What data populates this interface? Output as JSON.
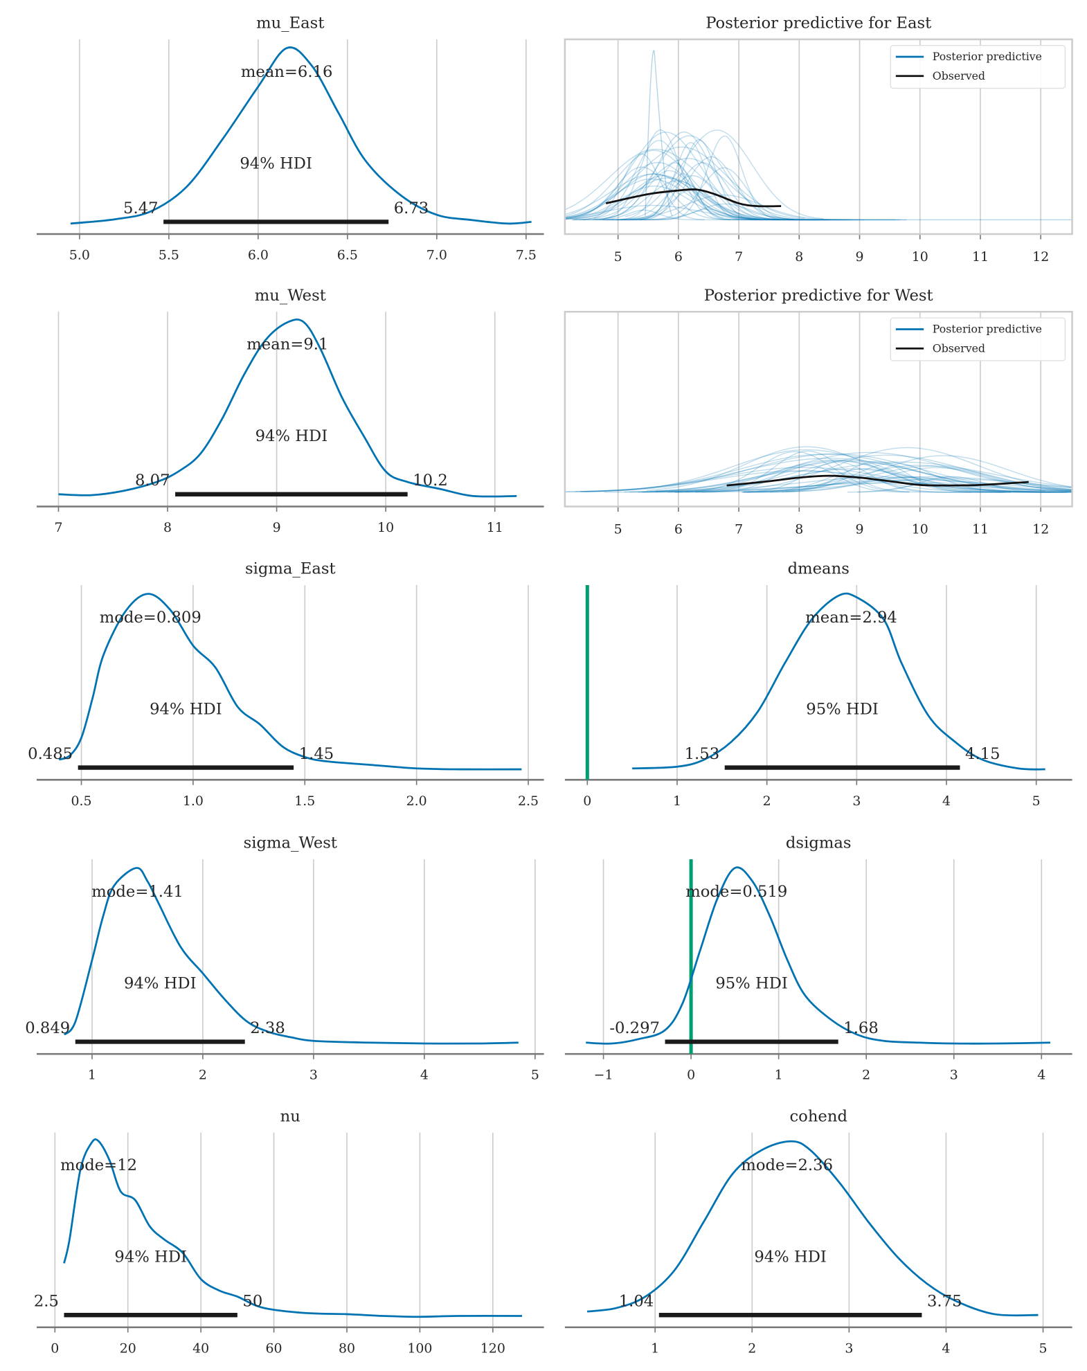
{
  "chart_data": [
    {
      "id": "mu_East",
      "type": "density",
      "title": "mu_East",
      "ticks": [
        5.0,
        5.5,
        6.0,
        6.5,
        7.0,
        7.5
      ],
      "tick_labels": [
        "5.0",
        "5.5",
        "6.0",
        "6.5",
        "7.0",
        "7.5"
      ],
      "xlim": [
        4.76,
        7.6
      ],
      "point_label": "mean=6.16",
      "point": 6.16,
      "hdi": [
        5.47,
        6.73
      ],
      "hdi_labels": [
        "5.47",
        "6.73"
      ],
      "hdi_text": "94% HDI",
      "density": [
        [
          4.95,
          0
        ],
        [
          5.2,
          0.025
        ],
        [
          5.4,
          0.07
        ],
        [
          5.6,
          0.21
        ],
        [
          5.8,
          0.48
        ],
        [
          6.0,
          0.78
        ],
        [
          6.16,
          1
        ],
        [
          6.3,
          0.9
        ],
        [
          6.45,
          0.63
        ],
        [
          6.6,
          0.36
        ],
        [
          6.8,
          0.16
        ],
        [
          7.0,
          0.05
        ],
        [
          7.2,
          0.02
        ],
        [
          7.4,
          0
        ],
        [
          7.53,
          0.01
        ]
      ]
    },
    {
      "id": "mu_West",
      "type": "density",
      "title": "mu_West",
      "ticks": [
        7,
        8,
        9,
        10,
        11
      ],
      "tick_labels": [
        "7",
        "8",
        "9",
        "10",
        "11"
      ],
      "xlim": [
        6.8,
        11.45
      ],
      "point_label": "mean=9.1",
      "point": 9.1,
      "hdi": [
        8.07,
        10.2
      ],
      "hdi_labels": [
        "8.07",
        "10.2"
      ],
      "hdi_text": "94% HDI",
      "density": [
        [
          7.0,
          0.01
        ],
        [
          7.3,
          0.005
        ],
        [
          7.6,
          0.03
        ],
        [
          7.9,
          0.08
        ],
        [
          8.1,
          0.14
        ],
        [
          8.3,
          0.24
        ],
        [
          8.5,
          0.44
        ],
        [
          8.7,
          0.69
        ],
        [
          8.9,
          0.89
        ],
        [
          9.1,
          0.99
        ],
        [
          9.25,
          0.99
        ],
        [
          9.4,
          0.84
        ],
        [
          9.6,
          0.56
        ],
        [
          9.8,
          0.34
        ],
        [
          10.0,
          0.14
        ],
        [
          10.2,
          0.08
        ],
        [
          10.5,
          0.04
        ],
        [
          10.8,
          0.0
        ],
        [
          11.2,
          0.0
        ]
      ]
    },
    {
      "id": "sigma_East",
      "type": "density",
      "title": "sigma_East",
      "ticks": [
        0.5,
        1.0,
        1.5,
        2.0,
        2.5
      ],
      "tick_labels": [
        "0.5",
        "1.0",
        "1.5",
        "2.0",
        "2.5"
      ],
      "xlim": [
        0.3,
        2.57
      ],
      "point_label": "mode=0.809",
      "point": 0.809,
      "hdi": [
        0.485,
        1.45
      ],
      "hdi_labels": [
        "0.485",
        "1.45"
      ],
      "hdi_text": "94% HDI",
      "density": [
        [
          0.4,
          0.055
        ],
        [
          0.45,
          0.08
        ],
        [
          0.5,
          0.18
        ],
        [
          0.55,
          0.405
        ],
        [
          0.6,
          0.655
        ],
        [
          0.7,
          0.905
        ],
        [
          0.8,
          1
        ],
        [
          0.9,
          0.905
        ],
        [
          1.0,
          0.705
        ],
        [
          1.1,
          0.58
        ],
        [
          1.2,
          0.355
        ],
        [
          1.3,
          0.255
        ],
        [
          1.4,
          0.13
        ],
        [
          1.5,
          0.07
        ],
        [
          1.6,
          0.045
        ],
        [
          1.8,
          0.025
        ],
        [
          2.0,
          0.005
        ],
        [
          2.2,
          0
        ],
        [
          2.47,
          0
        ]
      ]
    },
    {
      "id": "dmeans",
      "type": "density",
      "title": "dmeans",
      "ticks": [
        0,
        1,
        2,
        3,
        4,
        5
      ],
      "tick_labels": [
        "0",
        "1",
        "2",
        "3",
        "4",
        "5"
      ],
      "xlim": [
        -0.25,
        5.4
      ],
      "ref_val": 0,
      "point_label": "mean=2.94",
      "point": 2.94,
      "hdi": [
        1.53,
        4.15
      ],
      "hdi_labels": [
        "1.53",
        "4.15"
      ],
      "hdi_text": "95% HDI",
      "density": [
        [
          0.5,
          0.005
        ],
        [
          1.0,
          0.015
        ],
        [
          1.3,
          0.055
        ],
        [
          1.6,
          0.155
        ],
        [
          1.9,
          0.33
        ],
        [
          2.2,
          0.605
        ],
        [
          2.5,
          0.855
        ],
        [
          2.8,
          0.99
        ],
        [
          3.0,
          0.98
        ],
        [
          3.3,
          0.855
        ],
        [
          3.5,
          0.605
        ],
        [
          3.8,
          0.305
        ],
        [
          4.1,
          0.155
        ],
        [
          4.4,
          0.055
        ],
        [
          4.8,
          0.005
        ],
        [
          5.1,
          0
        ]
      ]
    },
    {
      "id": "sigma_West",
      "type": "density",
      "title": "sigma_West",
      "ticks": [
        1,
        2,
        3,
        4,
        5
      ],
      "tick_labels": [
        "1",
        "2",
        "3",
        "4",
        "5"
      ],
      "xlim": [
        0.5,
        5.08
      ],
      "point_label": "mode=1.41",
      "point": 1.41,
      "hdi": [
        0.849,
        2.38
      ],
      "hdi_labels": [
        "0.849",
        "2.38"
      ],
      "hdi_text": "94% HDI",
      "density": [
        [
          0.75,
          0.05
        ],
        [
          0.85,
          0.125
        ],
        [
          1.0,
          0.475
        ],
        [
          1.1,
          0.725
        ],
        [
          1.2,
          0.9
        ],
        [
          1.4,
          1
        ],
        [
          1.5,
          0.925
        ],
        [
          1.6,
          0.8
        ],
        [
          1.8,
          0.55
        ],
        [
          2.0,
          0.4
        ],
        [
          2.2,
          0.25
        ],
        [
          2.4,
          0.125
        ],
        [
          2.6,
          0.065
        ],
        [
          2.8,
          0.035
        ],
        [
          3.0,
          0.015
        ],
        [
          3.5,
          0.005
        ],
        [
          4.0,
          0
        ],
        [
          4.5,
          0
        ],
        [
          4.85,
          0.005
        ]
      ]
    },
    {
      "id": "dsigmas",
      "type": "density",
      "title": "dsigmas",
      "ticks": [
        -1,
        0,
        1,
        2,
        3,
        4
      ],
      "tick_labels": [
        "−1",
        "0",
        "1",
        "2",
        "3",
        "4"
      ],
      "xlim": [
        -1.44,
        4.35
      ],
      "ref_val": 0,
      "point_label": "mode=0.519",
      "point": 0.519,
      "hdi": [
        -0.297,
        1.68
      ],
      "hdi_labels": [
        "-0.297",
        "1.68"
      ],
      "hdi_text": "95% HDI",
      "density": [
        [
          -1.2,
          0.005
        ],
        [
          -0.9,
          0
        ],
        [
          -0.6,
          0.025
        ],
        [
          -0.3,
          0.075
        ],
        [
          -0.1,
          0.225
        ],
        [
          0.1,
          0.525
        ],
        [
          0.3,
          0.825
        ],
        [
          0.5,
          1
        ],
        [
          0.7,
          0.925
        ],
        [
          0.9,
          0.725
        ],
        [
          1.1,
          0.475
        ],
        [
          1.3,
          0.275
        ],
        [
          1.6,
          0.135
        ],
        [
          1.9,
          0.05
        ],
        [
          2.2,
          0.015
        ],
        [
          2.6,
          0.005
        ],
        [
          3.0,
          0
        ],
        [
          3.5,
          0
        ],
        [
          4.1,
          0.005
        ]
      ]
    },
    {
      "id": "nu",
      "type": "density",
      "title": "nu",
      "ticks": [
        0,
        20,
        40,
        60,
        80,
        100,
        120
      ],
      "tick_labels": [
        "0",
        "20",
        "40",
        "60",
        "80",
        "100",
        "120"
      ],
      "xlim": [
        -5,
        134
      ],
      "point_label": "mode=12",
      "point": 12,
      "hdi": [
        2.5,
        50
      ],
      "hdi_labels": [
        "2.5",
        "50"
      ],
      "hdi_text": "94% HDI",
      "density": [
        [
          2.5,
          0.305
        ],
        [
          4,
          0.44
        ],
        [
          7,
          0.84
        ],
        [
          10,
          0.99
        ],
        [
          12,
          1
        ],
        [
          15,
          0.89
        ],
        [
          18,
          0.715
        ],
        [
          22,
          0.665
        ],
        [
          26,
          0.515
        ],
        [
          30,
          0.44
        ],
        [
          35,
          0.365
        ],
        [
          40,
          0.215
        ],
        [
          45,
          0.15
        ],
        [
          50,
          0.115
        ],
        [
          55,
          0.065
        ],
        [
          60,
          0.04
        ],
        [
          70,
          0.02
        ],
        [
          80,
          0.015
        ],
        [
          90,
          0.005
        ],
        [
          100,
          0
        ],
        [
          110,
          0.005
        ],
        [
          128,
          0.005
        ]
      ]
    },
    {
      "id": "cohend",
      "type": "density",
      "title": "cohend",
      "ticks": [
        1,
        2,
        3,
        4,
        5
      ],
      "tick_labels": [
        "1",
        "2",
        "3",
        "4",
        "5"
      ],
      "xlim": [
        0.07,
        5.3
      ],
      "point_label": "mode=2.36",
      "point": 2.36,
      "hdi": [
        1.04,
        3.75
      ],
      "hdi_labels": [
        "1.04",
        "3.75"
      ],
      "hdi_text": "94% HDI",
      "density": [
        [
          0.3,
          0.03
        ],
        [
          0.6,
          0.05
        ],
        [
          0.9,
          0.115
        ],
        [
          1.2,
          0.265
        ],
        [
          1.5,
          0.54
        ],
        [
          1.8,
          0.815
        ],
        [
          2.1,
          0.95
        ],
        [
          2.4,
          1
        ],
        [
          2.6,
          0.95
        ],
        [
          2.9,
          0.765
        ],
        [
          3.2,
          0.54
        ],
        [
          3.5,
          0.34
        ],
        [
          3.8,
          0.19
        ],
        [
          4.1,
          0.09
        ],
        [
          4.5,
          0.015
        ],
        [
          4.95,
          0.01
        ]
      ]
    },
    {
      "id": "ppc_East",
      "type": "line",
      "title": "Posterior predictive for East",
      "ticks": [
        5,
        6,
        7,
        8,
        9,
        10,
        11,
        12
      ],
      "tick_labels": [
        "5",
        "6",
        "7",
        "8",
        "9",
        "10",
        "11",
        "12"
      ],
      "xlim": [
        4.12,
        12.52
      ],
      "legend": [
        "Posterior predictive",
        "Observed"
      ],
      "legend_placement": "upper right",
      "observed": [
        [
          4.8,
          0.12
        ],
        [
          5.5,
          0.17
        ],
        [
          6.0,
          0.19
        ],
        [
          6.3,
          0.195
        ],
        [
          6.6,
          0.17
        ],
        [
          7.0,
          0.12
        ],
        [
          7.3,
          0.105
        ],
        [
          7.7,
          0.105
        ]
      ],
      "center": 6.1,
      "spread": 0.9
    },
    {
      "id": "ppc_West",
      "type": "line",
      "title": "Posterior predictive for West",
      "ticks": [
        5,
        6,
        7,
        8,
        9,
        10,
        11,
        12
      ],
      "tick_labels": [
        "5",
        "6",
        "7",
        "8",
        "9",
        "10",
        "11",
        "12"
      ],
      "xlim": [
        4.12,
        12.52
      ],
      "legend": [
        "Posterior predictive",
        "Observed"
      ],
      "legend_placement": "upper right",
      "observed": [
        [
          6.8,
          0.067
        ],
        [
          7.5,
          0.09
        ],
        [
          8.0,
          0.11
        ],
        [
          8.5,
          0.12
        ],
        [
          9.0,
          0.11
        ],
        [
          9.5,
          0.09
        ],
        [
          10.0,
          0.07
        ],
        [
          10.5,
          0.067
        ],
        [
          11.0,
          0.07
        ],
        [
          11.8,
          0.086
        ]
      ],
      "center": 9.1,
      "spread": 1.8
    }
  ],
  "colors": {
    "density": "#0173b2",
    "hdi": "#1a1a1a",
    "ref_line": "#029e73",
    "ppc": "#0173b2",
    "observed": "#111111",
    "grid": "#cccccc",
    "axis": "#777777"
  }
}
